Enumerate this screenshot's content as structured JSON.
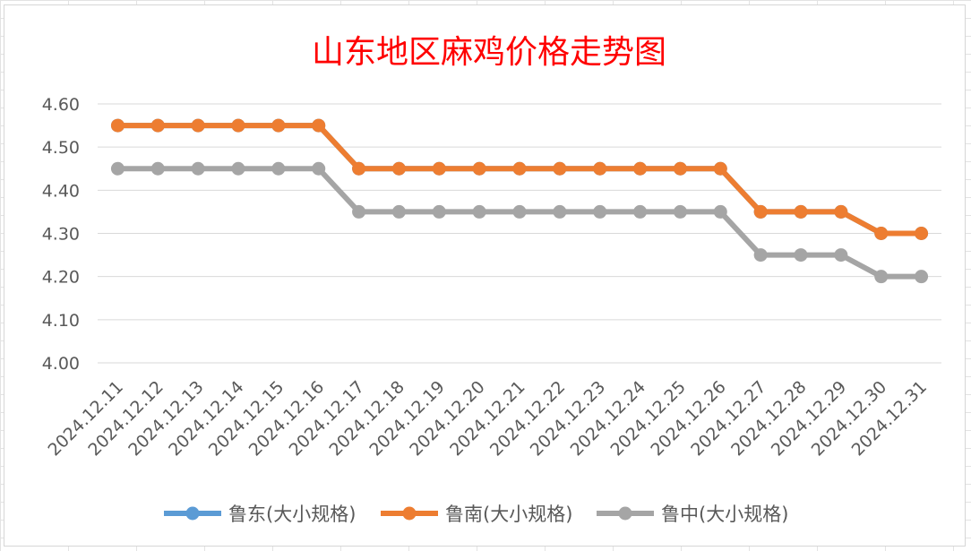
{
  "chart_data": {
    "type": "line",
    "title": "山东地区麻鸡价格走势图",
    "title_color": "#ff0000",
    "categories": [
      "2024.12.11",
      "2024.12.12",
      "2024.12.13",
      "2024.12.14",
      "2024.12.15",
      "2024.12.16",
      "2024.12.17",
      "2024.12.18",
      "2024.12.19",
      "2024.12.20",
      "2024.12.21",
      "2024.12.22",
      "2024.12.23",
      "2024.12.24",
      "2024.12.25",
      "2024.12.26",
      "2024.12.27",
      "2024.12.28",
      "2024.12.29",
      "2024.12.30",
      "2024.12.31"
    ],
    "ylim": [
      4.0,
      4.6
    ],
    "yticks": [
      "4.00",
      "4.10",
      "4.20",
      "4.30",
      "4.40",
      "4.50",
      "4.60"
    ],
    "grid": true,
    "legend": "bottom",
    "series": [
      {
        "name": "鲁东(大小规格)",
        "color": "#5b9bd5",
        "values": [
          4.55,
          4.55,
          4.55,
          4.55,
          4.55,
          4.55,
          4.45,
          4.45,
          4.45,
          4.45,
          4.45,
          4.45,
          4.45,
          4.45,
          4.45,
          4.45,
          4.35,
          4.35,
          4.35,
          4.3,
          4.3
        ]
      },
      {
        "name": "鲁南(大小规格)",
        "color": "#ed7d31",
        "values": [
          4.55,
          4.55,
          4.55,
          4.55,
          4.55,
          4.55,
          4.45,
          4.45,
          4.45,
          4.45,
          4.45,
          4.45,
          4.45,
          4.45,
          4.45,
          4.45,
          4.35,
          4.35,
          4.35,
          4.3,
          4.3
        ]
      },
      {
        "name": "鲁中(大小规格)",
        "color": "#a5a5a5",
        "values": [
          4.45,
          4.45,
          4.45,
          4.45,
          4.45,
          4.45,
          4.35,
          4.35,
          4.35,
          4.35,
          4.35,
          4.35,
          4.35,
          4.35,
          4.35,
          4.35,
          4.25,
          4.25,
          4.25,
          4.2,
          4.2
        ]
      }
    ]
  }
}
